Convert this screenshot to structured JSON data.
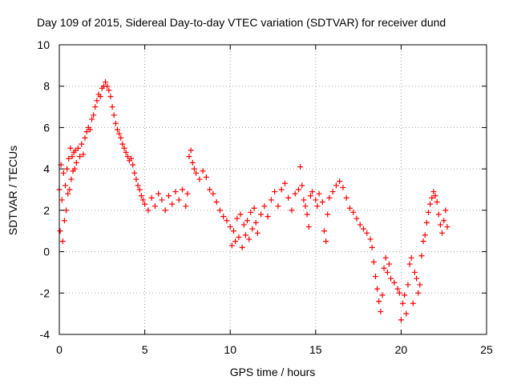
{
  "chart_data": {
    "type": "scatter",
    "title": "Day 109 of 2015, Sidereal Day-to-day VTEC variation (SDTVAR) for receiver dund",
    "xlabel": "GPS time / hours",
    "ylabel": "SDTVAR / TECUs",
    "xlim": [
      0,
      25
    ],
    "ylim": [
      -4,
      10
    ],
    "xticks": [
      0,
      5,
      10,
      15,
      20,
      25
    ],
    "yticks": [
      -4,
      -2,
      0,
      2,
      4,
      6,
      8,
      10
    ],
    "xtick_labels": [
      "0",
      "5",
      "10",
      "15",
      "20",
      "25"
    ],
    "ytick_labels": [
      "-4",
      "-2",
      "0",
      "2",
      "4",
      "6",
      "8",
      "10"
    ],
    "grid": true,
    "marker": "+",
    "series": [
      {
        "name": "SDTVAR",
        "color": "#ff0000",
        "points": [
          [
            0.0,
            3.0
          ],
          [
            0.05,
            1.0
          ],
          [
            0.1,
            4.2
          ],
          [
            0.15,
            2.5
          ],
          [
            0.2,
            0.5
          ],
          [
            0.25,
            3.8
          ],
          [
            0.3,
            1.5
          ],
          [
            0.35,
            3.2
          ],
          [
            0.4,
            2.0
          ],
          [
            0.45,
            4.0
          ],
          [
            0.5,
            2.8
          ],
          [
            0.55,
            4.5
          ],
          [
            0.6,
            3.0
          ],
          [
            0.65,
            5.0
          ],
          [
            0.7,
            3.5
          ],
          [
            0.75,
            4.6
          ],
          [
            0.8,
            3.9
          ],
          [
            0.85,
            4.8
          ],
          [
            0.9,
            4.0
          ],
          [
            0.95,
            4.9
          ],
          [
            1.0,
            4.3
          ],
          [
            1.1,
            5.0
          ],
          [
            1.2,
            4.6
          ],
          [
            1.3,
            5.2
          ],
          [
            1.4,
            4.7
          ],
          [
            1.5,
            5.5
          ],
          [
            1.6,
            5.8
          ],
          [
            1.7,
            6.0
          ],
          [
            1.8,
            5.9
          ],
          [
            1.9,
            6.4
          ],
          [
            2.0,
            6.6
          ],
          [
            2.1,
            7.0
          ],
          [
            2.2,
            7.3
          ],
          [
            2.3,
            7.6
          ],
          [
            2.4,
            7.5
          ],
          [
            2.5,
            7.9
          ],
          [
            2.6,
            8.0
          ],
          [
            2.7,
            8.2
          ],
          [
            2.8,
            8.0
          ],
          [
            2.9,
            7.8
          ],
          [
            3.0,
            7.5
          ],
          [
            3.1,
            7.0
          ],
          [
            3.2,
            6.6
          ],
          [
            3.3,
            6.2
          ],
          [
            3.4,
            5.9
          ],
          [
            3.5,
            5.7
          ],
          [
            3.6,
            5.5
          ],
          [
            3.7,
            5.2
          ],
          [
            3.8,
            5.0
          ],
          [
            3.9,
            4.8
          ],
          [
            4.0,
            4.6
          ],
          [
            4.1,
            4.4
          ],
          [
            4.2,
            4.5
          ],
          [
            4.3,
            4.2
          ],
          [
            4.4,
            3.8
          ],
          [
            4.5,
            3.5
          ],
          [
            4.6,
            3.2
          ],
          [
            4.7,
            3.0
          ],
          [
            4.8,
            2.7
          ],
          [
            4.9,
            2.5
          ],
          [
            5.0,
            2.3
          ],
          [
            5.2,
            2.0
          ],
          [
            5.4,
            2.6
          ],
          [
            5.6,
            2.2
          ],
          [
            5.8,
            2.8
          ],
          [
            6.0,
            2.5
          ],
          [
            6.2,
            2.0
          ],
          [
            6.4,
            2.7
          ],
          [
            6.6,
            2.3
          ],
          [
            6.8,
            2.9
          ],
          [
            7.0,
            2.5
          ],
          [
            7.2,
            3.0
          ],
          [
            7.4,
            2.2
          ],
          [
            7.5,
            2.8
          ],
          [
            7.6,
            4.6
          ],
          [
            7.7,
            4.9
          ],
          [
            7.8,
            4.3
          ],
          [
            7.9,
            4.0
          ],
          [
            8.0,
            3.8
          ],
          [
            8.2,
            3.5
          ],
          [
            8.4,
            3.9
          ],
          [
            8.6,
            3.6
          ],
          [
            8.8,
            3.0
          ],
          [
            9.0,
            2.8
          ],
          [
            9.2,
            2.4
          ],
          [
            9.4,
            2.0
          ],
          [
            9.6,
            1.7
          ],
          [
            9.8,
            1.5
          ],
          [
            10.0,
            1.2
          ],
          [
            10.1,
            0.3
          ],
          [
            10.2,
            1.0
          ],
          [
            10.3,
            0.5
          ],
          [
            10.4,
            1.6
          ],
          [
            10.5,
            0.7
          ],
          [
            10.6,
            1.8
          ],
          [
            10.7,
            0.2
          ],
          [
            10.8,
            1.3
          ],
          [
            10.9,
            0.8
          ],
          [
            11.0,
            1.5
          ],
          [
            11.1,
            0.6
          ],
          [
            11.2,
            1.9
          ],
          [
            11.3,
            1.1
          ],
          [
            11.4,
            2.1
          ],
          [
            11.5,
            1.4
          ],
          [
            11.6,
            0.9
          ],
          [
            11.8,
            1.8
          ],
          [
            12.0,
            2.2
          ],
          [
            12.2,
            1.7
          ],
          [
            12.4,
            2.5
          ],
          [
            12.6,
            2.9
          ],
          [
            12.8,
            2.2
          ],
          [
            13.0,
            3.0
          ],
          [
            13.2,
            3.3
          ],
          [
            13.4,
            2.6
          ],
          [
            13.6,
            2.0
          ],
          [
            13.8,
            2.8
          ],
          [
            14.0,
            3.0
          ],
          [
            14.1,
            4.1
          ],
          [
            14.2,
            3.2
          ],
          [
            14.3,
            2.5
          ],
          [
            14.4,
            2.2
          ],
          [
            14.5,
            1.8
          ],
          [
            14.6,
            1.2
          ],
          [
            14.7,
            2.7
          ],
          [
            14.8,
            2.9
          ],
          [
            15.0,
            2.5
          ],
          [
            15.1,
            2.2
          ],
          [
            15.2,
            2.8
          ],
          [
            15.4,
            2.4
          ],
          [
            15.5,
            1.0
          ],
          [
            15.6,
            0.5
          ],
          [
            15.7,
            1.8
          ],
          [
            15.8,
            2.6
          ],
          [
            16.0,
            2.9
          ],
          [
            16.2,
            3.2
          ],
          [
            16.4,
            3.4
          ],
          [
            16.6,
            3.1
          ],
          [
            16.8,
            2.6
          ],
          [
            17.0,
            2.1
          ],
          [
            17.2,
            1.9
          ],
          [
            17.4,
            1.6
          ],
          [
            17.6,
            1.3
          ],
          [
            17.8,
            1.1
          ],
          [
            18.0,
            0.9
          ],
          [
            18.2,
            0.6
          ],
          [
            18.3,
            0.2
          ],
          [
            18.4,
            -0.5
          ],
          [
            18.5,
            -1.2
          ],
          [
            18.6,
            -1.8
          ],
          [
            18.7,
            -2.4
          ],
          [
            18.8,
            -2.9
          ],
          [
            18.9,
            -2.1
          ],
          [
            19.0,
            -0.8
          ],
          [
            19.1,
            -0.3
          ],
          [
            19.2,
            -1.0
          ],
          [
            19.3,
            -0.6
          ],
          [
            19.4,
            -1.3
          ],
          [
            19.6,
            -1.5
          ],
          [
            19.8,
            -1.8
          ],
          [
            19.9,
            -2.0
          ],
          [
            20.0,
            -3.3
          ],
          [
            20.1,
            -2.5
          ],
          [
            20.2,
            -2.1
          ],
          [
            20.3,
            -3.0
          ],
          [
            20.4,
            -1.6
          ],
          [
            20.5,
            -0.6
          ],
          [
            20.6,
            -0.3
          ],
          [
            20.7,
            -2.5
          ],
          [
            20.8,
            -1.0
          ],
          [
            20.9,
            -1.3
          ],
          [
            21.0,
            -2.0
          ],
          [
            21.1,
            -1.6
          ],
          [
            21.2,
            -0.2
          ],
          [
            21.3,
            0.5
          ],
          [
            21.4,
            0.8
          ],
          [
            21.5,
            1.4
          ],
          [
            21.6,
            1.9
          ],
          [
            21.7,
            2.3
          ],
          [
            21.8,
            2.6
          ],
          [
            21.9,
            2.9
          ],
          [
            22.0,
            2.7
          ],
          [
            22.1,
            2.4
          ],
          [
            22.2,
            1.8
          ],
          [
            22.3,
            1.3
          ],
          [
            22.4,
            0.9
          ],
          [
            22.5,
            1.5
          ],
          [
            22.6,
            2.0
          ],
          [
            22.7,
            1.2
          ]
        ]
      }
    ]
  }
}
